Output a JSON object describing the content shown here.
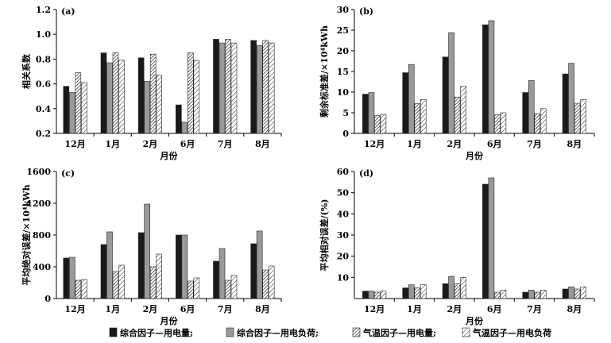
{
  "legend": [
    "综合因子—用电量;",
    "综合因子—用电负荷;",
    "气温因子—用电量;",
    "气温因子—用电负荷"
  ],
  "series_styles": [
    {
      "fill": "#1a1a1a",
      "pattern": "solid"
    },
    {
      "fill": "#9a9a9a",
      "pattern": "solid"
    },
    {
      "fill": "#ffffff",
      "pattern": "hatch-dense"
    },
    {
      "fill": "#ffffff",
      "pattern": "hatch-sparse"
    }
  ],
  "chart_data": [
    {
      "type": "bar",
      "panel_label": "(a)",
      "categories": [
        "12月",
        "1月",
        "2月",
        "6月",
        "7月",
        "8月"
      ],
      "xlabel": "月份",
      "ylabel": "相关系数",
      "ylim": [
        0.2,
        1.2
      ],
      "yticks": [
        "0.2",
        "0.4",
        "0.6",
        "0.8",
        "1.0",
        "1.2"
      ],
      "series": [
        {
          "name": "综合因子—用电量",
          "values": [
            0.58,
            0.85,
            0.81,
            0.43,
            0.96,
            0.95
          ]
        },
        {
          "name": "综合因子—用电负荷",
          "values": [
            0.53,
            0.77,
            0.62,
            0.29,
            0.93,
            0.91
          ]
        },
        {
          "name": "气温因子—用电量",
          "values": [
            0.69,
            0.85,
            0.84,
            0.85,
            0.96,
            0.95
          ]
        },
        {
          "name": "气温因子—用电负荷",
          "values": [
            0.61,
            0.79,
            0.67,
            0.79,
            0.93,
            0.93
          ]
        }
      ]
    },
    {
      "type": "bar",
      "panel_label": "(b)",
      "categories": [
        "12月",
        "1月",
        "2月",
        "6月",
        "7月",
        "8月"
      ],
      "xlabel": "月份",
      "ylabel": "剩余标准差/×10⁴kWh",
      "ylim": [
        0,
        30
      ],
      "yticks": [
        "0",
        "5",
        "10",
        "15",
        "20",
        "25",
        "30"
      ],
      "series": [
        {
          "name": "综合因子—用电量",
          "values": [
            9.5,
            14.7,
            18.5,
            26.3,
            9.9,
            14.4
          ]
        },
        {
          "name": "综合因子—用电负荷",
          "values": [
            9.9,
            16.7,
            24.4,
            27.3,
            12.8,
            17.0
          ]
        },
        {
          "name": "气温因子—用电量",
          "values": [
            4.3,
            7.2,
            8.8,
            4.5,
            4.8,
            7.3
          ]
        },
        {
          "name": "气温因子—用电负荷",
          "values": [
            4.6,
            8.2,
            11.4,
            5.0,
            6.0,
            8.2
          ]
        }
      ]
    },
    {
      "type": "bar",
      "panel_label": "(c)",
      "categories": [
        "12月",
        "1月",
        "2月",
        "6月",
        "7月",
        "8月"
      ],
      "xlabel": "月份",
      "ylabel": "平均绝对误差/×10⁴kWh",
      "ylim": [
        0,
        1600
      ],
      "yticks": [
        "0",
        "400",
        "800",
        "1200",
        "1600"
      ],
      "series": [
        {
          "name": "综合因子—用电量",
          "values": [
            510,
            680,
            830,
            800,
            470,
            690
          ]
        },
        {
          "name": "综合因子—用电负荷",
          "values": [
            520,
            840,
            1190,
            800,
            630,
            850
          ]
        },
        {
          "name": "气温因子—用电量",
          "values": [
            230,
            340,
            400,
            220,
            230,
            360
          ]
        },
        {
          "name": "气温因子—用电负荷",
          "values": [
            240,
            420,
            560,
            260,
            290,
            410
          ]
        }
      ]
    },
    {
      "type": "bar",
      "panel_label": "(d)",
      "categories": [
        "12月",
        "1月",
        "2月",
        "6月",
        "7月",
        "8月"
      ],
      "xlabel": "月份",
      "ylabel": "平均相对误差/(%)",
      "ylim": [
        0,
        60
      ],
      "yticks": [
        "10",
        "20",
        "30",
        "40",
        "50",
        "60"
      ],
      "series": [
        {
          "name": "综合因子—用电量",
          "values": [
            3.5,
            5.0,
            7.0,
            54.0,
            3.0,
            4.5
          ]
        },
        {
          "name": "综合因子—用电负荷",
          "values": [
            3.5,
            6.5,
            10.5,
            57.0,
            4.0,
            5.5
          ]
        },
        {
          "name": "气温因子—用电量",
          "values": [
            3.0,
            5.0,
            7.0,
            3.0,
            3.0,
            4.5
          ]
        },
        {
          "name": "气温因子—用电负荷",
          "values": [
            3.5,
            6.5,
            10.0,
            4.0,
            4.0,
            5.5
          ]
        }
      ]
    }
  ]
}
